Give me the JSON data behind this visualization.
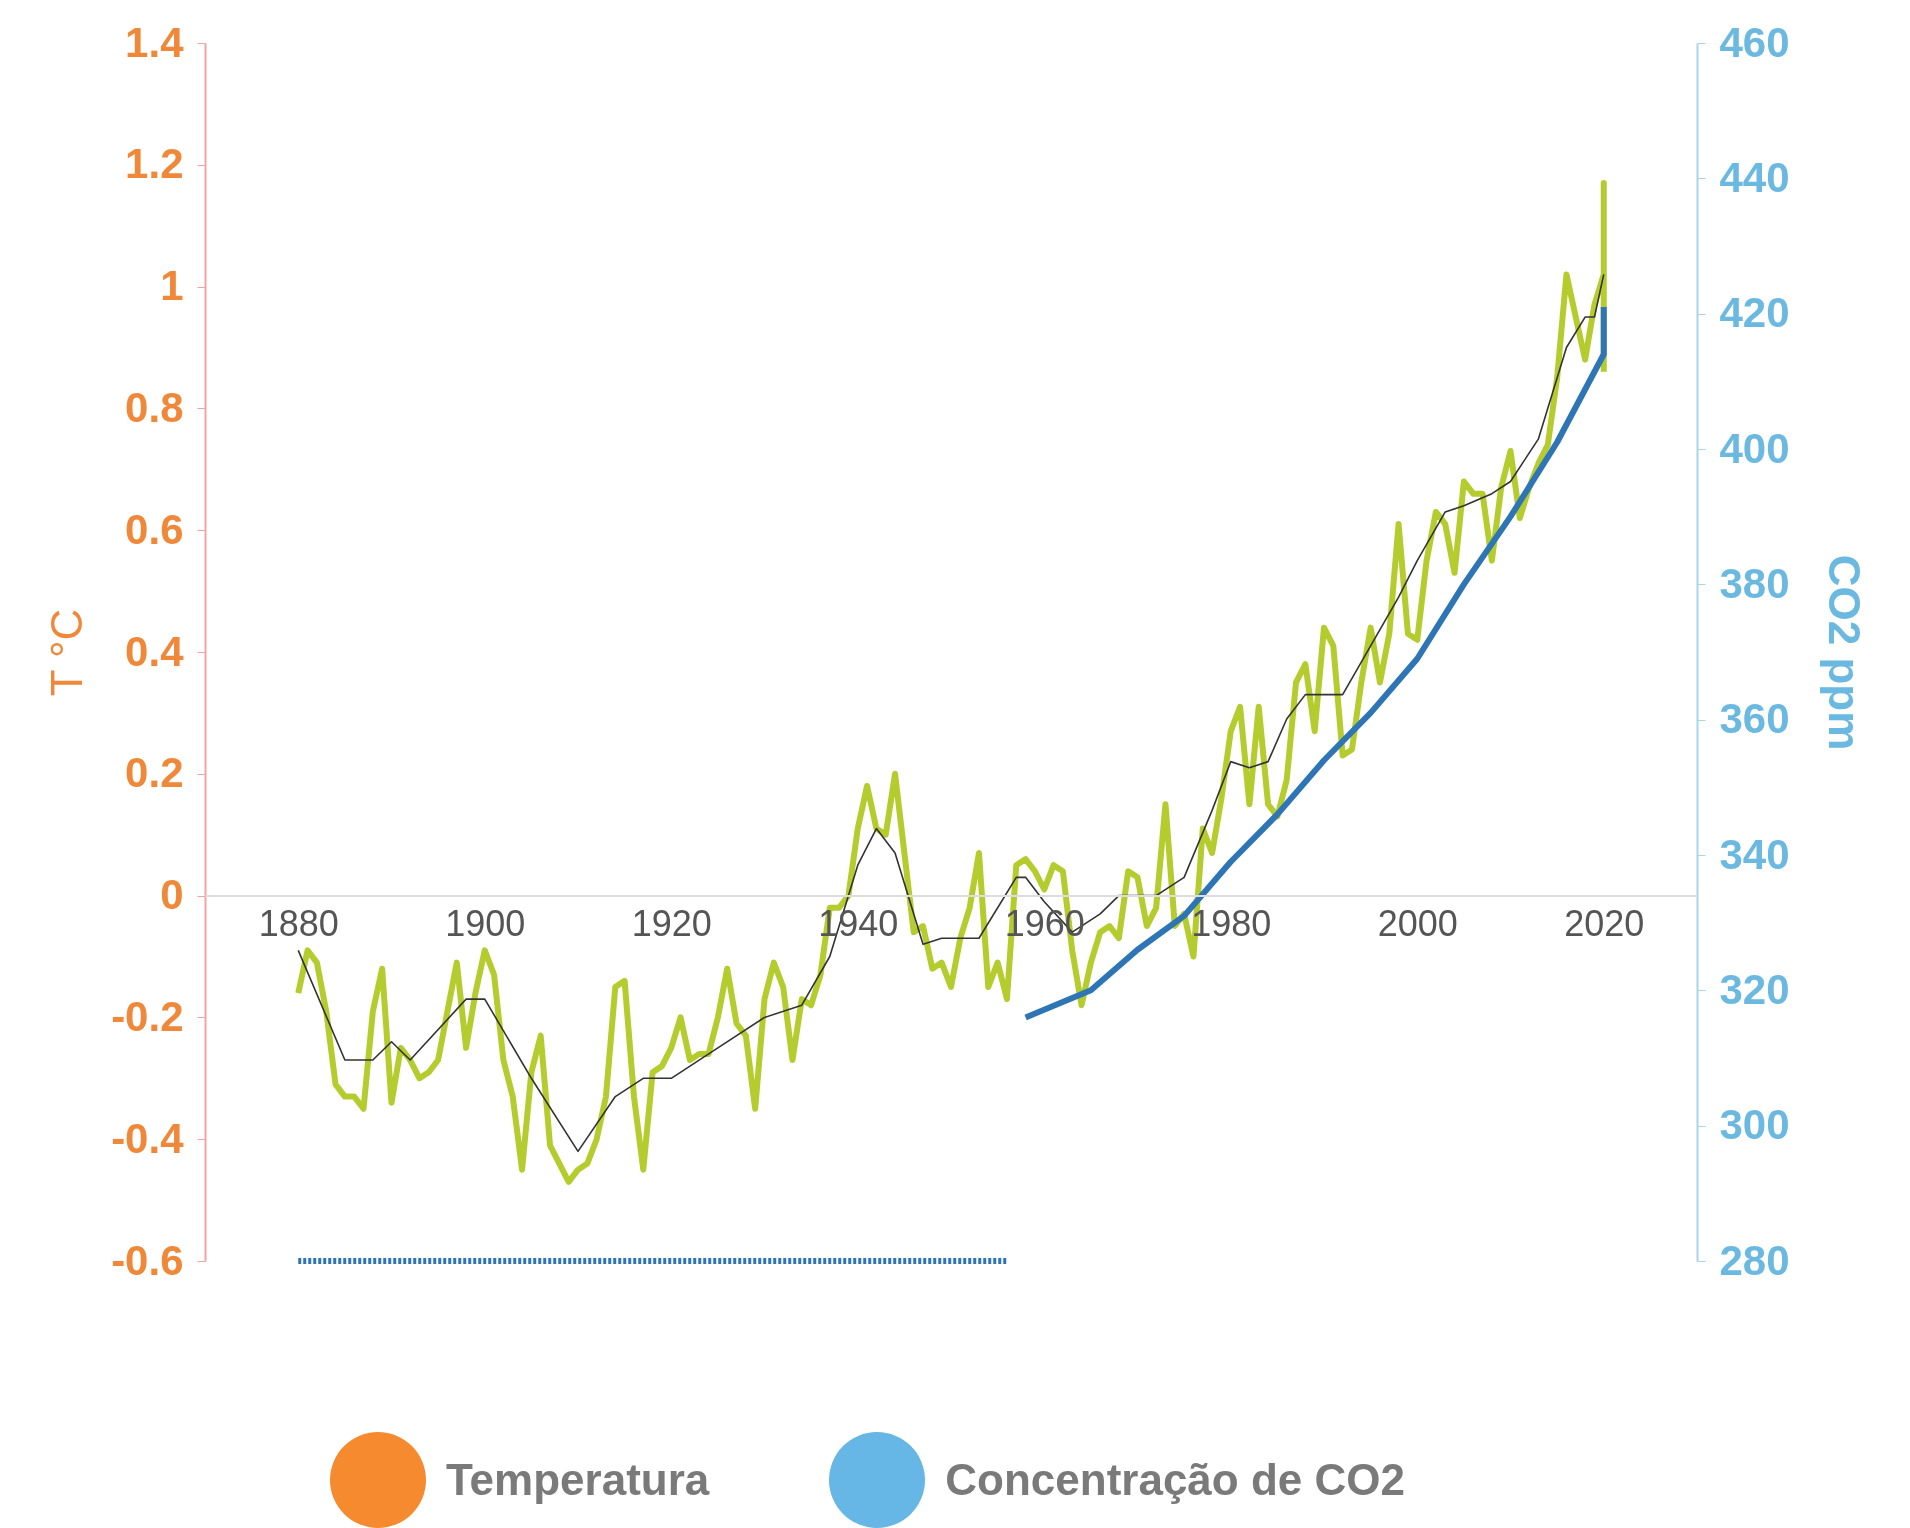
{
  "chart_data": {
    "type": "line",
    "ylabel": "T °C",
    "y2label": "CO2 ppm",
    "xlim": [
      1870,
      2030
    ],
    "xticks": [
      1880,
      1900,
      1920,
      1940,
      1960,
      1980,
      2000,
      2020
    ],
    "ylim": [
      -0.6,
      1.4
    ],
    "yticks": [
      -0.6,
      -0.4,
      -0.2,
      0,
      0.2,
      0.4,
      0.6,
      0.8,
      1,
      1.2,
      1.4
    ],
    "y2lim": [
      280,
      460
    ],
    "y2ticks": [
      280,
      300,
      320,
      340,
      360,
      380,
      400,
      420,
      440,
      460
    ],
    "grid": false,
    "marker": "none",
    "annotations": [
      "Temperatura",
      "Concentração de CO2"
    ],
    "series": [
      {
        "color": "#b5cc2e",
        "line_style": "solid",
        "x": [
          1880,
          1881,
          1882,
          1883,
          1884,
          1885,
          1886,
          1887,
          1888,
          1889,
          1890,
          1891,
          1892,
          1893,
          1894,
          1895,
          1896,
          1897,
          1898,
          1899,
          1900,
          1901,
          1902,
          1903,
          1904,
          1905,
          1906,
          1907,
          1908,
          1909,
          1910,
          1911,
          1912,
          1913,
          1914,
          1915,
          1916,
          1917,
          1918,
          1919,
          1920,
          1921,
          1922,
          1923,
          1924,
          1925,
          1926,
          1927,
          1928,
          1929,
          1930,
          1931,
          1932,
          1933,
          1934,
          1935,
          1936,
          1937,
          1938,
          1939,
          1940,
          1941,
          1942,
          1943,
          1944,
          1945,
          1946,
          1947,
          1948,
          1949,
          1950,
          1951,
          1952,
          1953,
          1954,
          1955,
          1956,
          1957,
          1958,
          1959,
          1960,
          1961,
          1962,
          1963,
          1964,
          1965,
          1966,
          1967,
          1968,
          1969,
          1970,
          1971,
          1972,
          1973,
          1974,
          1975,
          1976,
          1977,
          1978,
          1979,
          1980,
          1981,
          1982,
          1983,
          1984,
          1985,
          1986,
          1987,
          1988,
          1989,
          1990,
          1991,
          1992,
          1993,
          1994,
          1995,
          1996,
          1997,
          1998,
          1999,
          2000,
          2001,
          2002,
          2003,
          2004,
          2005,
          2006,
          2007,
          2008,
          2009,
          2010,
          2011,
          2012,
          2013,
          2014,
          2015,
          2016,
          2017,
          2018,
          2019,
          2020,
          2020,
          2020
        ],
        "values": [
          -0.16,
          -0.09,
          -0.11,
          -0.19,
          -0.31,
          -0.33,
          -0.33,
          -0.35,
          -0.19,
          -0.12,
          -0.34,
          -0.25,
          -0.27,
          -0.3,
          -0.29,
          -0.27,
          -0.19,
          -0.11,
          -0.25,
          -0.16,
          -0.09,
          -0.13,
          -0.27,
          -0.33,
          -0.45,
          -0.29,
          -0.23,
          -0.41,
          -0.44,
          -0.47,
          -0.45,
          -0.44,
          -0.4,
          -0.33,
          -0.15,
          -0.14,
          -0.33,
          -0.45,
          -0.29,
          -0.28,
          -0.25,
          -0.2,
          -0.27,
          -0.26,
          -0.26,
          -0.2,
          -0.12,
          -0.21,
          -0.23,
          -0.35,
          -0.17,
          -0.11,
          -0.15,
          -0.27,
          -0.17,
          -0.18,
          -0.13,
          -0.02,
          -0.02,
          0,
          0.11,
          0.18,
          0.11,
          0.1,
          0.2,
          0.07,
          -0.06,
          -0.05,
          -0.12,
          -0.11,
          -0.15,
          -0.07,
          -0.02,
          0.07,
          -0.15,
          -0.11,
          -0.17,
          0.05,
          0.06,
          0.04,
          0.01,
          0.05,
          0.04,
          -0.09,
          -0.18,
          -0.11,
          -0.06,
          -0.05,
          -0.07,
          0.04,
          0.03,
          -0.05,
          -0.02,
          0.15,
          -0.05,
          -0.03,
          -0.1,
          0.11,
          0.07,
          0.16,
          0.27,
          0.31,
          0.15,
          0.31,
          0.15,
          0.13,
          0.19,
          0.35,
          0.38,
          0.27,
          0.44,
          0.41,
          0.23,
          0.24,
          0.35,
          0.44,
          0.35,
          0.43,
          0.61,
          0.43,
          0.42,
          0.55,
          0.63,
          0.61,
          0.53,
          0.68,
          0.66,
          0.66,
          0.55,
          0.67,
          0.73,
          0.62,
          0.67,
          0.71,
          0.74,
          0.85,
          1.02,
          0.95,
          0.88,
          0.97,
          1.02,
          1.17,
          0.86
        ]
      },
      {
        "color": "#333333",
        "line_style": "solid",
        "x": [
          1880,
          1885,
          1888,
          1890,
          1892,
          1898,
          1900,
          1905,
          1910,
          1914,
          1917,
          1920,
          1925,
          1930,
          1934,
          1937,
          1940,
          1942,
          1944,
          1947,
          1949,
          1953,
          1957,
          1958,
          1960,
          1963,
          1966,
          1968,
          1972,
          1975,
          1978,
          1980,
          1982,
          1984,
          1986,
          1988,
          1992,
          1995,
          1998,
          2000,
          2003,
          2005,
          2008,
          2010,
          2013,
          2016,
          2018,
          2019,
          2020
        ],
        "values": [
          -0.09,
          -0.27,
          -0.27,
          -0.24,
          -0.27,
          -0.17,
          -0.17,
          -0.3,
          -0.42,
          -0.33,
          -0.3,
          -0.3,
          -0.25,
          -0.2,
          -0.18,
          -0.1,
          0.05,
          0.11,
          0.07,
          -0.08,
          -0.07,
          -0.07,
          0.03,
          0.03,
          -0.01,
          -0.06,
          -0.03,
          0,
          0,
          0.03,
          0.14,
          0.22,
          0.21,
          0.22,
          0.29,
          0.33,
          0.33,
          0.41,
          0.49,
          0.55,
          0.63,
          0.64,
          0.66,
          0.68,
          0.75,
          0.9,
          0.95,
          0.95,
          1.02
        ]
      },
      {
        "color": "#2e75b6",
        "axis": "y2",
        "line_style": "dotted",
        "x": [
          1880,
          1956
        ],
        "values": [
          280,
          280
        ]
      },
      {
        "color": "#2e75b6",
        "axis": "y2",
        "line_style": "solid",
        "x": [
          1958,
          1965,
          1970,
          1975,
          1980,
          1985,
          1990,
          1995,
          2000,
          2005,
          2010,
          2015,
          2020,
          2020
        ],
        "values": [
          316,
          320,
          326,
          331,
          339,
          346,
          354,
          361,
          369,
          380,
          390,
          401,
          414,
          421
        ]
      }
    ]
  }
}
